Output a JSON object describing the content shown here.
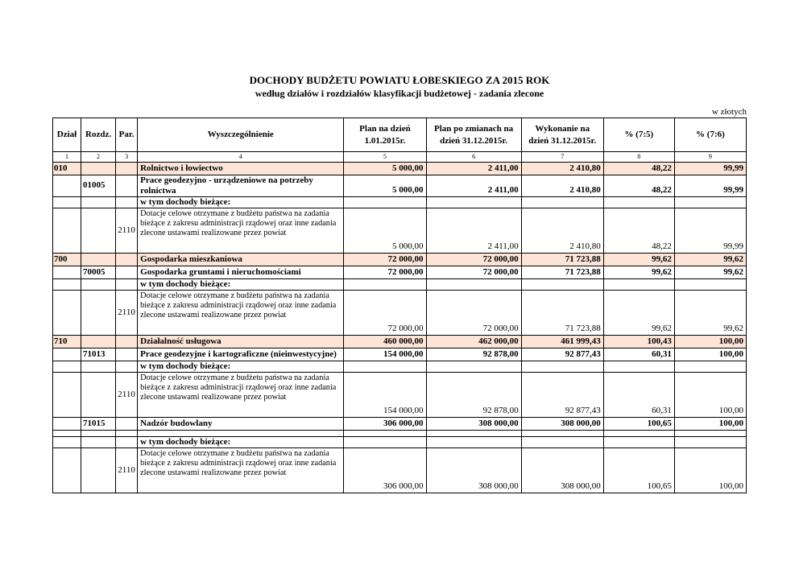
{
  "page": {
    "title": "DOCHODY BUDŻETU POWIATU ŁOBESKIEGO ZA  2015 ROK",
    "subtitle": "według działów i rozdziałów klasyfikacji budżetowej - zadania zlecone",
    "currency_note": "w złotych"
  },
  "colors": {
    "section_row_bg": "#FCE4D6",
    "border": "#000000",
    "text": "#000000"
  },
  "table": {
    "headers": [
      "Dział",
      "Rozdz.",
      "Par.",
      "Wyszczególnienie",
      "Plan na dzień 1.01.2015r.",
      "Plan po zmianach na dzień 31.12.2015r.",
      "Wykonanie na dzień 31.12.2015r.",
      "% (7:5)",
      "% (7:6)"
    ],
    "column_numbers": [
      "1",
      "2",
      "3",
      "4",
      "5",
      "6",
      "7",
      "8",
      "9"
    ],
    "rows": [
      {
        "type": "section",
        "dzial": "010",
        "rozdz": "",
        "par": "",
        "name": "Rolnictwo i łowiectwo",
        "plan_1_01": "5 000,00",
        "plan_po_zmianach": "2 411,00",
        "wykonanie": "2 410,80",
        "pct_7_5": "48,22",
        "pct_7_6": "99,99"
      },
      {
        "type": "chapter",
        "dzial": "",
        "rozdz": "01005",
        "par": "",
        "name": "Prace geodezyjno - urządzeniowe na potrzeby rolnictwa",
        "plan_1_01": "5 000,00",
        "plan_po_zmianach": "2 411,00",
        "wykonanie": "2 410,80",
        "pct_7_5": "48,22",
        "pct_7_6": "99,99"
      },
      {
        "type": "subheading",
        "dzial": "",
        "rozdz": "",
        "par": "",
        "name": "w tym dochody bieżące:",
        "plan_1_01": "",
        "plan_po_zmianach": "",
        "wykonanie": "",
        "pct_7_5": "",
        "pct_7_6": ""
      },
      {
        "type": "paragraph",
        "dzial": "",
        "rozdz": "",
        "par": "2110",
        "name": "Dotacje celowe otrzymane z budżetu państwa na zadania bieżące z zakresu administracji rządowej oraz inne zadania zlecone ustawami realizowane przez powiat",
        "plan_1_01": "5 000,00",
        "plan_po_zmianach": "2 411,00",
        "wykonanie": "2 410,80",
        "pct_7_5": "48,22",
        "pct_7_6": "99,99"
      },
      {
        "type": "section",
        "dzial": "700",
        "rozdz": "",
        "par": "",
        "name": "Gospodarka mieszkaniowa",
        "plan_1_01": "72 000,00",
        "plan_po_zmianach": "72 000,00",
        "wykonanie": "71 723,88",
        "pct_7_5": "99,62",
        "pct_7_6": "99,62"
      },
      {
        "type": "chapter",
        "dzial": "",
        "rozdz": "70005",
        "par": "",
        "name": "Gospodarka gruntami i nieruchomościami",
        "plan_1_01": "72 000,00",
        "plan_po_zmianach": "72 000,00",
        "wykonanie": "71 723,88",
        "pct_7_5": "99,62",
        "pct_7_6": "99,62"
      },
      {
        "type": "subheading",
        "dzial": "",
        "rozdz": "",
        "par": "",
        "name": "w tym dochody bieżące:",
        "plan_1_01": "",
        "plan_po_zmianach": "",
        "wykonanie": "",
        "pct_7_5": "",
        "pct_7_6": ""
      },
      {
        "type": "paragraph",
        "dzial": "",
        "rozdz": "",
        "par": "2110",
        "name": "Dotacje celowe otrzymane z budżetu państwa na zadania bieżące z zakresu administracji rządowej oraz inne zadania zlecone ustawami realizowane przez powiat",
        "plan_1_01": "72 000,00",
        "plan_po_zmianach": "72 000,00",
        "wykonanie": "71 723,88",
        "pct_7_5": "99,62",
        "pct_7_6": "99,62"
      },
      {
        "type": "section",
        "dzial": "710",
        "rozdz": "",
        "par": "",
        "name": "Działalność usługowa",
        "plan_1_01": "460 000,00",
        "plan_po_zmianach": "462 000,00",
        "wykonanie": "461 999,43",
        "pct_7_5": "100,43",
        "pct_7_6": "100,00"
      },
      {
        "type": "chapter",
        "dzial": "",
        "rozdz": "71013",
        "par": "",
        "name": "Prace geodezyjne i kartograficzne (nieinwestycyjne)",
        "plan_1_01": "154 000,00",
        "plan_po_zmianach": "92 878,00",
        "wykonanie": "92 877,43",
        "pct_7_5": "60,31",
        "pct_7_6": "100,00"
      },
      {
        "type": "subheading",
        "dzial": "",
        "rozdz": "",
        "par": "",
        "name": "w tym dochody bieżące:",
        "plan_1_01": "",
        "plan_po_zmianach": "",
        "wykonanie": "",
        "pct_7_5": "",
        "pct_7_6": ""
      },
      {
        "type": "paragraph",
        "dzial": "",
        "rozdz": "",
        "par": "2110",
        "name": "Dotacje celowe otrzymane z budżetu państwa na zadania bieżące z zakresu administracji rządowej oraz inne zadania zlecone ustawami realizowane przez powiat",
        "plan_1_01": "154 000,00",
        "plan_po_zmianach": "92 878,00",
        "wykonanie": "92 877,43",
        "pct_7_5": "60,31",
        "pct_7_6": "100,00"
      },
      {
        "type": "chapter",
        "dzial": "",
        "rozdz": "71015",
        "par": "",
        "name": "Nadzór budowlany",
        "plan_1_01": "306 000,00",
        "plan_po_zmianach": "308 000,00",
        "wykonanie": "308 000,00",
        "pct_7_5": "100,65",
        "pct_7_6": "100,00"
      },
      {
        "type": "empty",
        "dzial": "",
        "rozdz": "",
        "par": "",
        "name": "",
        "plan_1_01": "",
        "plan_po_zmianach": "",
        "wykonanie": "",
        "pct_7_5": "",
        "pct_7_6": ""
      },
      {
        "type": "subheading",
        "dzial": "",
        "rozdz": "",
        "par": "",
        "name": "w tym dochody bieżące:",
        "plan_1_01": "",
        "plan_po_zmianach": "",
        "wykonanie": "",
        "pct_7_5": "",
        "pct_7_6": ""
      },
      {
        "type": "paragraph",
        "dzial": "",
        "rozdz": "",
        "par": "2110",
        "name": "Dotacje celowe otrzymane z budżetu państwa na zadania bieżące z zakresu administracji rządowej oraz inne zadania zlecone ustawami realizowane przez powiat",
        "plan_1_01": "306 000,00",
        "plan_po_zmianach": "308 000,00",
        "wykonanie": "308 000,00",
        "pct_7_5": "100,65",
        "pct_7_6": "100,00"
      }
    ]
  }
}
